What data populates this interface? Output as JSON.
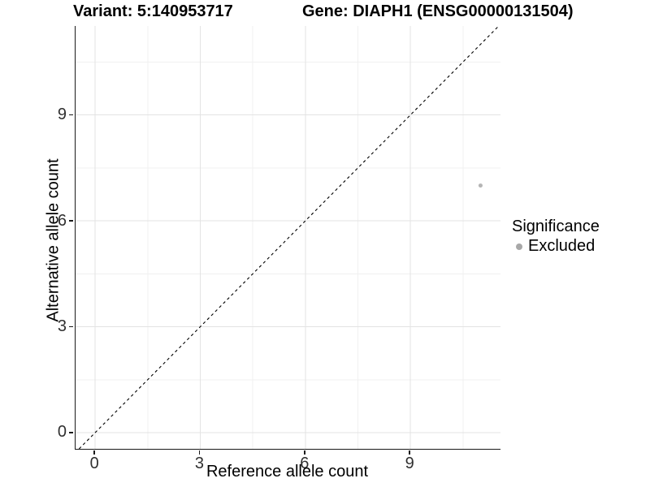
{
  "header": {
    "variant_title": "Variant: 5:140953717",
    "gene_title": "Gene: DIAPH1 (ENSG00000131504)"
  },
  "chart_data": {
    "type": "scatter",
    "xlabel": "Reference allele count",
    "ylabel": "Alternative allele count",
    "xlim": [
      -0.56,
      11.57
    ],
    "ylim": [
      -0.46,
      11.52
    ],
    "x_ticks": [
      0,
      3,
      6,
      9
    ],
    "y_ticks": [
      0,
      3,
      6,
      9
    ],
    "x_minor_ticks": [
      1.5,
      4.5,
      7.5,
      10.5
    ],
    "y_minor_ticks": [
      1.5,
      4.5,
      7.5,
      10.5
    ],
    "grid": "major+minor on white background",
    "identity_line": {
      "style": "dashed",
      "from": -0.46,
      "to": 11.52,
      "color": "#000000"
    },
    "series": [
      {
        "name": "Excluded",
        "color": "#b5b5b5",
        "point_radius": 2.5,
        "points": [
          {
            "x": 11,
            "y": 7
          }
        ]
      }
    ],
    "legend": {
      "title": "Significance",
      "position": "right",
      "items": [
        {
          "label": "Excluded",
          "color": "#a8a8a8"
        }
      ]
    }
  },
  "colors": {
    "background": "#ffffff",
    "grid_major": "#e3e3e3",
    "grid_minor": "#f0f0f0",
    "axis_line": "#1a1a1a",
    "tick_label": "#303030"
  }
}
